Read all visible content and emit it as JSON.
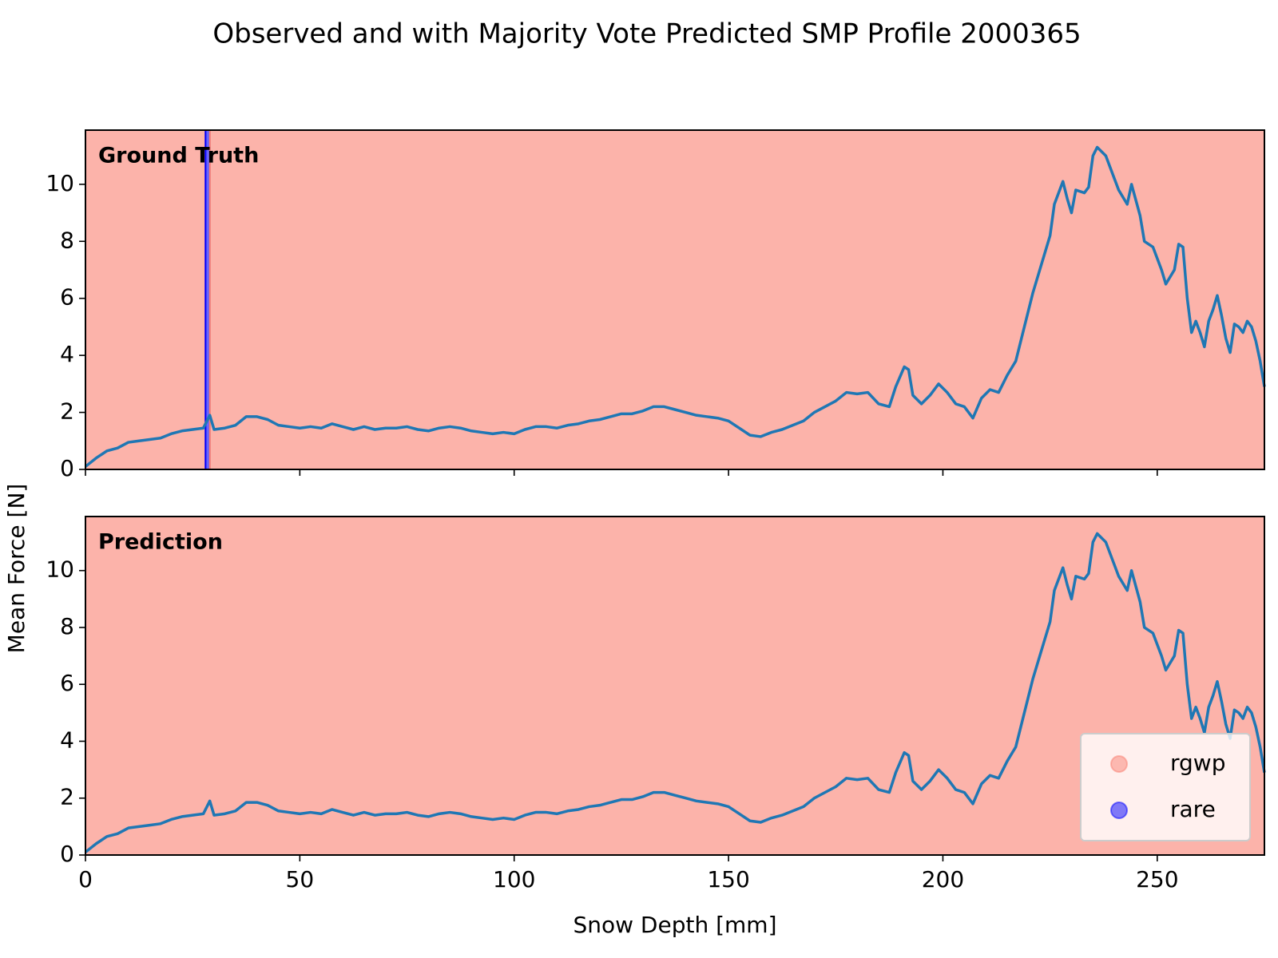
{
  "chart_data": [
    {
      "type": "line",
      "title": "Observed and with Majority Vote Predicted SMP Profile 2000365",
      "annotation": "Ground Truth",
      "ylabel": "Mean Force [N]",
      "xlim": [
        0,
        275
      ],
      "xticks": [
        0,
        50,
        100,
        150,
        200,
        250
      ],
      "show_xtick_labels": false,
      "ylim": [
        0,
        11.9
      ],
      "yticks": [
        0,
        2,
        4,
        6,
        8,
        10
      ],
      "region_alpha": 0.6,
      "regions": [
        {
          "name": "rgwp",
          "color": "#fa8072",
          "x": [
            0,
            28
          ]
        },
        {
          "name": "rare",
          "color": "#0000ff",
          "x": [
            28,
            29
          ]
        },
        {
          "name": "rgwp",
          "color": "#fa8072",
          "x": [
            29,
            275
          ]
        }
      ],
      "series": [
        {
          "color": "#1f77b4",
          "x": [
            0,
            2.5,
            5,
            7.5,
            10,
            12.5,
            15,
            17.5,
            20,
            22.5,
            25,
            27.5,
            29,
            30,
            32.5,
            35,
            37.5,
            40,
            42.5,
            45,
            47.5,
            50,
            52.5,
            55,
            57.5,
            60,
            62.5,
            65,
            67.5,
            70,
            72.5,
            75,
            77.5,
            80,
            82.5,
            85,
            87.5,
            90,
            92.5,
            95,
            97.5,
            100,
            102.5,
            105,
            107.5,
            110,
            112.5,
            115,
            117.5,
            120,
            122.5,
            125,
            127.5,
            130,
            132.5,
            135,
            137.5,
            140,
            142.5,
            145,
            147.5,
            150,
            152.5,
            155,
            157.5,
            160,
            162.5,
            165,
            167.5,
            170,
            172.5,
            175,
            177.5,
            180,
            182.5,
            185,
            187.5,
            189,
            191,
            192,
            193,
            195,
            197,
            199,
            201,
            203,
            205,
            207,
            209,
            211,
            213,
            215,
            217,
            219,
            221,
            223,
            225,
            226,
            228,
            229,
            230,
            231,
            233,
            234,
            235,
            236,
            238,
            240,
            241,
            243,
            244,
            246,
            247,
            249,
            251,
            252,
            254,
            255,
            256,
            257,
            258,
            259,
            260,
            261,
            262,
            263,
            264,
            265,
            266,
            267,
            268,
            269,
            270,
            271,
            272,
            273,
            274,
            275
          ],
          "values": [
            0.1,
            0.4,
            0.65,
            0.75,
            0.95,
            1.0,
            1.05,
            1.1,
            1.25,
            1.35,
            1.4,
            1.45,
            1.9,
            1.4,
            1.45,
            1.55,
            1.85,
            1.85,
            1.75,
            1.55,
            1.5,
            1.45,
            1.5,
            1.45,
            1.6,
            1.5,
            1.4,
            1.5,
            1.4,
            1.45,
            1.45,
            1.5,
            1.4,
            1.35,
            1.45,
            1.5,
            1.45,
            1.35,
            1.3,
            1.25,
            1.3,
            1.25,
            1.4,
            1.5,
            1.5,
            1.45,
            1.55,
            1.6,
            1.7,
            1.75,
            1.85,
            1.95,
            1.95,
            2.05,
            2.2,
            2.2,
            2.1,
            2.0,
            1.9,
            1.85,
            1.8,
            1.7,
            1.45,
            1.2,
            1.15,
            1.3,
            1.4,
            1.55,
            1.7,
            2.0,
            2.2,
            2.4,
            2.7,
            2.65,
            2.7,
            2.3,
            2.2,
            2.9,
            3.6,
            3.5,
            2.6,
            2.3,
            2.6,
            3.0,
            2.7,
            2.3,
            2.2,
            1.8,
            2.5,
            2.8,
            2.7,
            3.3,
            3.8,
            5.0,
            6.2,
            7.2,
            8.2,
            9.3,
            10.1,
            9.5,
            9.0,
            9.8,
            9.7,
            9.9,
            11.0,
            11.3,
            11.0,
            10.2,
            9.8,
            9.3,
            10.0,
            8.9,
            8.0,
            7.8,
            7.0,
            6.5,
            7.0,
            7.9,
            7.8,
            6.0,
            4.8,
            5.2,
            4.8,
            4.3,
            5.2,
            5.6,
            6.1,
            5.4,
            4.6,
            4.1,
            5.1,
            5.0,
            4.8,
            5.2,
            5.0,
            4.5,
            3.8,
            2.9
          ]
        }
      ]
    },
    {
      "type": "line",
      "annotation": "Prediction",
      "xlabel": "Snow Depth [mm]",
      "xlim": [
        0,
        275
      ],
      "xticks": [
        0,
        50,
        100,
        150,
        200,
        250
      ],
      "show_xtick_labels": true,
      "ylim": [
        0,
        11.9
      ],
      "yticks": [
        0,
        2,
        4,
        6,
        8,
        10
      ],
      "region_alpha": 0.6,
      "regions": [
        {
          "name": "rgwp",
          "color": "#fa8072",
          "x": [
            0,
            275
          ]
        }
      ],
      "legend": {
        "position": "lower right",
        "entries": [
          {
            "name": "rgwp",
            "color": "#fa8072"
          },
          {
            "name": "rare",
            "color": "#0000ff"
          }
        ]
      },
      "series": [
        {
          "color": "#1f77b4",
          "x": [
            0,
            2.5,
            5,
            7.5,
            10,
            12.5,
            15,
            17.5,
            20,
            22.5,
            25,
            27.5,
            29,
            30,
            32.5,
            35,
            37.5,
            40,
            42.5,
            45,
            47.5,
            50,
            52.5,
            55,
            57.5,
            60,
            62.5,
            65,
            67.5,
            70,
            72.5,
            75,
            77.5,
            80,
            82.5,
            85,
            87.5,
            90,
            92.5,
            95,
            97.5,
            100,
            102.5,
            105,
            107.5,
            110,
            112.5,
            115,
            117.5,
            120,
            122.5,
            125,
            127.5,
            130,
            132.5,
            135,
            137.5,
            140,
            142.5,
            145,
            147.5,
            150,
            152.5,
            155,
            157.5,
            160,
            162.5,
            165,
            167.5,
            170,
            172.5,
            175,
            177.5,
            180,
            182.5,
            185,
            187.5,
            189,
            191,
            192,
            193,
            195,
            197,
            199,
            201,
            203,
            205,
            207,
            209,
            211,
            213,
            215,
            217,
            219,
            221,
            223,
            225,
            226,
            228,
            229,
            230,
            231,
            233,
            234,
            235,
            236,
            238,
            240,
            241,
            243,
            244,
            246,
            247,
            249,
            251,
            252,
            254,
            255,
            256,
            257,
            258,
            259,
            260,
            261,
            262,
            263,
            264,
            265,
            266,
            267,
            268,
            269,
            270,
            271,
            272,
            273,
            274,
            275
          ],
          "values": [
            0.1,
            0.4,
            0.65,
            0.75,
            0.95,
            1.0,
            1.05,
            1.1,
            1.25,
            1.35,
            1.4,
            1.45,
            1.9,
            1.4,
            1.45,
            1.55,
            1.85,
            1.85,
            1.75,
            1.55,
            1.5,
            1.45,
            1.5,
            1.45,
            1.6,
            1.5,
            1.4,
            1.5,
            1.4,
            1.45,
            1.45,
            1.5,
            1.4,
            1.35,
            1.45,
            1.5,
            1.45,
            1.35,
            1.3,
            1.25,
            1.3,
            1.25,
            1.4,
            1.5,
            1.5,
            1.45,
            1.55,
            1.6,
            1.7,
            1.75,
            1.85,
            1.95,
            1.95,
            2.05,
            2.2,
            2.2,
            2.1,
            2.0,
            1.9,
            1.85,
            1.8,
            1.7,
            1.45,
            1.2,
            1.15,
            1.3,
            1.4,
            1.55,
            1.7,
            2.0,
            2.2,
            2.4,
            2.7,
            2.65,
            2.7,
            2.3,
            2.2,
            2.9,
            3.6,
            3.5,
            2.6,
            2.3,
            2.6,
            3.0,
            2.7,
            2.3,
            2.2,
            1.8,
            2.5,
            2.8,
            2.7,
            3.3,
            3.8,
            5.0,
            6.2,
            7.2,
            8.2,
            9.3,
            10.1,
            9.5,
            9.0,
            9.8,
            9.7,
            9.9,
            11.0,
            11.3,
            11.0,
            10.2,
            9.8,
            9.3,
            10.0,
            8.9,
            8.0,
            7.8,
            7.0,
            6.5,
            7.0,
            7.9,
            7.8,
            6.0,
            4.8,
            5.2,
            4.8,
            4.3,
            5.2,
            5.6,
            6.1,
            5.4,
            4.6,
            4.1,
            5.1,
            5.0,
            4.8,
            5.2,
            5.0,
            4.5,
            3.8,
            2.9
          ]
        }
      ]
    }
  ]
}
